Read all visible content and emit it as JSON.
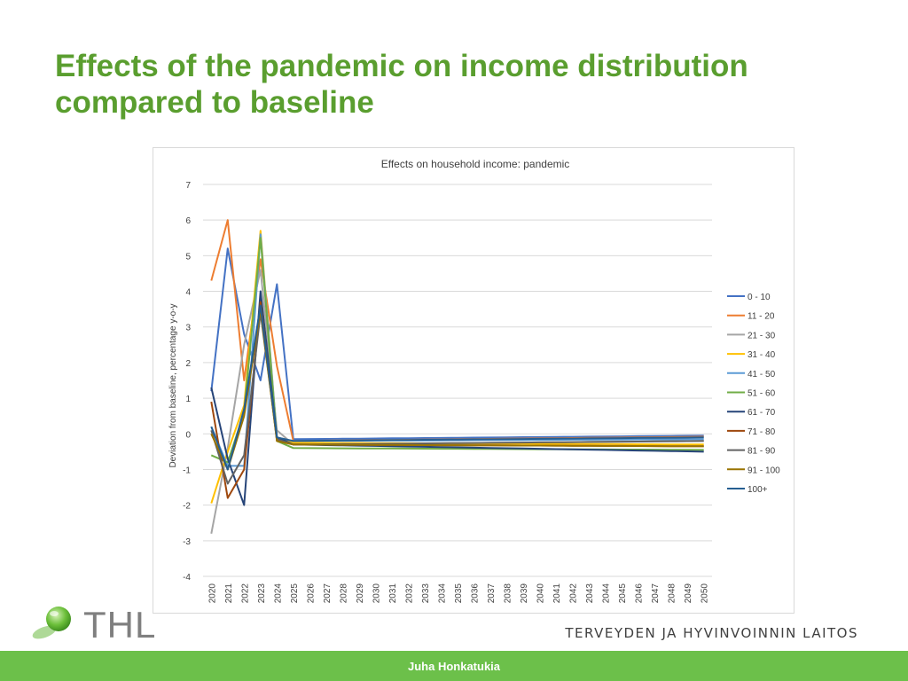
{
  "slide": {
    "title": "Effects of the pandemic on income distribution compared to baseline",
    "author": "Juha Honkatukia",
    "org_name": "TERVEYDEN JA HYVINVOINNIN LAITOS",
    "logo_text": "THL",
    "colors": {
      "title": "#5a9e2f",
      "footer": "#6cc04a"
    }
  },
  "chart_data": {
    "type": "line",
    "title": "Effects on household income: pandemic",
    "xlabel": "",
    "ylabel": "Deviation from baseline, percentage y-o-y",
    "ylim": [
      -4,
      7
    ],
    "yticks": [
      -4,
      -3,
      -2,
      -1,
      0,
      1,
      2,
      3,
      4,
      5,
      6,
      7
    ],
    "grid": true,
    "legend_position": "right",
    "x": [
      "2020",
      "2021",
      "2022",
      "2023",
      "2024",
      "2025",
      "2026",
      "2027",
      "2028",
      "2029",
      "2030",
      "2031",
      "2032",
      "2033",
      "2034",
      "2035",
      "2036",
      "2037",
      "2038",
      "2039",
      "2040",
      "2041",
      "2042",
      "2043",
      "2044",
      "2045",
      "2046",
      "2047",
      "2048",
      "2049",
      "2050"
    ],
    "series": [
      {
        "name": "0 - 10",
        "color": "#4472c4",
        "head": [
          1.2,
          5.2,
          2.8,
          1.5,
          4.2,
          -0.15
        ],
        "tail_start": -0.15,
        "tail_end": -0.05
      },
      {
        "name": "11 - 20",
        "color": "#ed7d31",
        "head": [
          4.3,
          6.0,
          1.5,
          4.9,
          1.9,
          -0.2
        ],
        "tail_start": -0.2,
        "tail_end": -0.08
      },
      {
        "name": "21 - 30",
        "color": "#a5a5a5",
        "head": [
          -2.8,
          -0.4,
          2.5,
          4.6,
          0.1,
          -0.3
        ],
        "tail_start": -0.3,
        "tail_end": -0.2
      },
      {
        "name": "31 - 40",
        "color": "#ffc000",
        "head": [
          -1.95,
          -0.5,
          0.8,
          5.7,
          -0.1,
          -0.25
        ],
        "tail_start": -0.25,
        "tail_end": -0.3
      },
      {
        "name": "41 - 50",
        "color": "#5b9bd5",
        "head": [
          0.2,
          -0.9,
          -0.9,
          5.6,
          -0.1,
          -0.2
        ],
        "tail_start": -0.2,
        "tail_end": -0.15
      },
      {
        "name": "51 - 60",
        "color": "#70ad47",
        "head": [
          -0.6,
          -0.8,
          0.6,
          5.5,
          -0.2,
          -0.4
        ],
        "tail_start": -0.4,
        "tail_end": -0.45
      },
      {
        "name": "61 - 70",
        "color": "#264478",
        "head": [
          1.3,
          -0.7,
          -2.0,
          4.0,
          -0.1,
          -0.3
        ],
        "tail_start": -0.3,
        "tail_end": -0.5
      },
      {
        "name": "71 - 80",
        "color": "#9e480e",
        "head": [
          0.9,
          -1.8,
          -1.0,
          3.7,
          -0.2,
          -0.3
        ],
        "tail_start": -0.3,
        "tail_end": -0.35
      },
      {
        "name": "81 - 90",
        "color": "#636363",
        "head": [
          0.1,
          -1.4,
          -0.6,
          3.4,
          -0.15,
          -0.3
        ],
        "tail_start": -0.3,
        "tail_end": -0.2
      },
      {
        "name": "91 - 100",
        "color": "#997300",
        "head": [
          0.0,
          -1.0,
          0.5,
          3.5,
          -0.2,
          -0.3
        ],
        "tail_start": -0.3,
        "tail_end": -0.35
      },
      {
        "name": "100+",
        "color": "#255e91",
        "head": [
          0.2,
          -1.0,
          0.7,
          3.6,
          -0.1,
          -0.2
        ],
        "tail_start": -0.2,
        "tail_end": -0.1
      }
    ]
  }
}
